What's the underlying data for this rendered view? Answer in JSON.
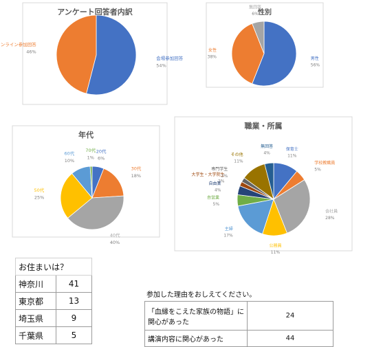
{
  "chart_data": [
    {
      "type": "pie",
      "title": "アンケート回答者内訳",
      "categories": [
        "会場参加回答",
        "オンライン参加回答"
      ],
      "values": [
        54,
        46
      ],
      "value_labels": [
        "54%",
        "46%"
      ],
      "colors": [
        "#4472c4",
        "#ed7d31"
      ]
    },
    {
      "type": "pie",
      "title": "性別",
      "categories": [
        "男性",
        "女性",
        "無回答"
      ],
      "values": [
        56,
        38,
        6
      ],
      "value_labels": [
        "56%",
        "38%",
        "6%"
      ],
      "colors": [
        "#4472c4",
        "#ed7d31",
        "#a5a5a5"
      ]
    },
    {
      "type": "pie",
      "title": "年代",
      "categories": [
        "20代",
        "30代",
        "40代",
        "50代",
        "60代",
        "70代"
      ],
      "values": [
        6,
        18,
        40,
        25,
        10,
        1
      ],
      "value_labels": [
        "6%",
        "18%",
        "40%",
        "25%",
        "10%",
        "1%"
      ],
      "colors": [
        "#4472c4",
        "#ed7d31",
        "#a5a5a5",
        "#ffc000",
        "#5b9bd5",
        "#70ad47"
      ]
    },
    {
      "type": "pie",
      "title": "職業・所属",
      "categories": [
        "保育士",
        "学校教職員",
        "会社員",
        "公務員",
        "主婦",
        "自営業",
        "自由業",
        "大学生・大学院生",
        "専門学生",
        "その他",
        "無回答"
      ],
      "values": [
        11,
        5,
        28,
        11,
        17,
        5,
        4,
        2,
        2,
        11,
        4
      ],
      "value_labels": [
        "11%",
        "5%",
        "28%",
        "11%",
        "17%",
        "5%",
        "4%",
        "2%",
        "2%",
        "11%",
        "4%"
      ],
      "colors": [
        "#4472c4",
        "#ed7d31",
        "#a5a5a5",
        "#ffc000",
        "#5b9bd5",
        "#70ad47",
        "#264478",
        "#9e480e",
        "#636363",
        "#997300",
        "#255e91"
      ]
    }
  ],
  "tables": [
    {
      "title": "お住まいは？",
      "rows": [
        [
          "神奈川",
          41
        ],
        [
          "東京都",
          13
        ],
        [
          "埼玉県",
          9
        ],
        [
          "千葉県",
          5
        ]
      ]
    },
    {
      "title": "参加した理由をおしえてください。",
      "rows": [
        [
          "「血縁をこえた家族の物語」に関心があった",
          24
        ],
        [
          "講演内容に関心があった",
          44
        ]
      ]
    }
  ]
}
